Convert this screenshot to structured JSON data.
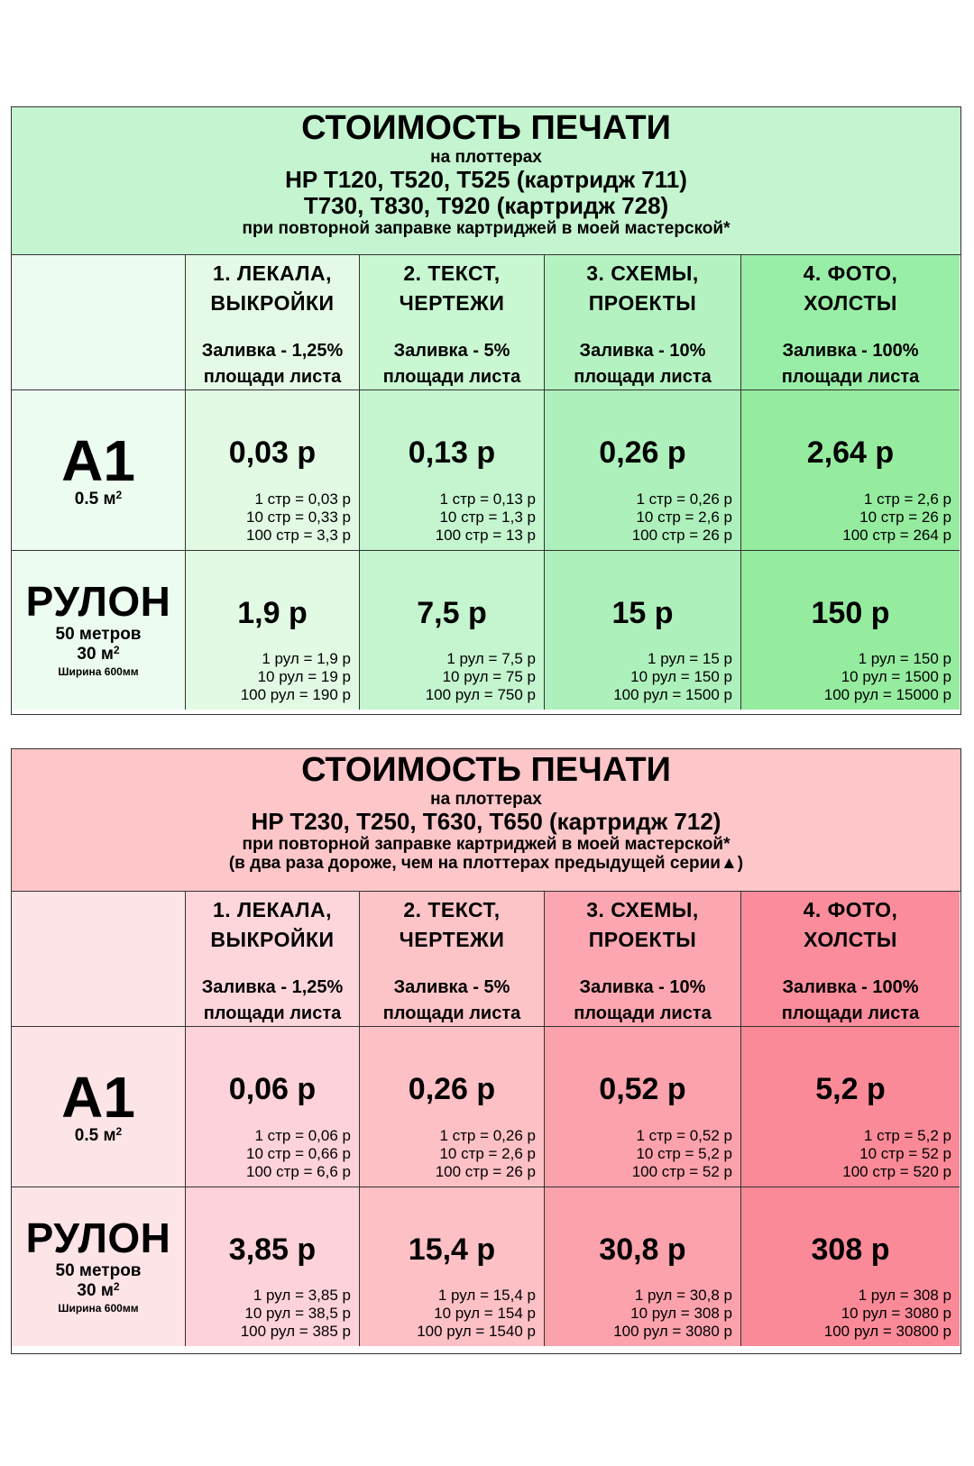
{
  "tables": [
    {
      "title": "СТОИМОСТЬ ПЕЧАТИ",
      "subtitle": "на плоттерах",
      "models": [
        "HP T120, T520, T525 (картридж 711)",
        "T730, T830, T920 (картридж 728)"
      ],
      "notes": [
        "при повторной заправке картриджей в моей мастерской*"
      ],
      "columns": [
        {
          "name_lines": [
            "1. ЛЕКАЛА,",
            "ВЫКРОЙКИ"
          ],
          "fill_lines": [
            "Заливка - 1,25%",
            "площади листа"
          ]
        },
        {
          "name_lines": [
            "2. ТЕКСТ,",
            "ЧЕРТЕЖИ"
          ],
          "fill_lines": [
            "Заливка - 5%",
            "площади листа"
          ]
        },
        {
          "name_lines": [
            "3. СХЕМЫ,",
            "ПРОЕКТЫ"
          ],
          "fill_lines": [
            "Заливка - 10%",
            "площади листа"
          ]
        },
        {
          "name_lines": [
            "4. ФОТО,",
            "ХОЛСТЫ"
          ],
          "fill_lines": [
            "Заливка - 100%",
            "площади листа"
          ]
        }
      ],
      "rows": [
        {
          "label": "A1",
          "area": "0.5 м",
          "area_sup": "2",
          "cells": [
            {
              "price": "0,03 р",
              "details": [
                "1 стр = 0,03 р",
                "10 стр = 0,33 р",
                "100 стр = 3,3 р"
              ]
            },
            {
              "price": "0,13 р",
              "details": [
                "1 стр = 0,13 р",
                "10 стр = 1,3 р",
                "100 стр = 13 р"
              ]
            },
            {
              "price": "0,26 р",
              "details": [
                "1 стр = 0,26 р",
                "10 стр = 2,6 р",
                "100 стр = 26 р"
              ]
            },
            {
              "price": "2,64 р",
              "details": [
                "1 стр = 2,6 р",
                "10 стр = 26 р",
                "100 стр = 264 р"
              ]
            }
          ]
        },
        {
          "label": "РУЛОН",
          "length": "50 метров",
          "area": "30 м",
          "area_sup": "2",
          "width": "Ширина 600мм",
          "cells": [
            {
              "price": "1,9 р",
              "details": [
                "1 рул = 1,9 р",
                "10 рул = 19 р",
                "100 рул = 190 р"
              ]
            },
            {
              "price": "7,5 р",
              "details": [
                "1 рул = 7,5 р",
                "10 рул = 75 р",
                "100 рул = 750 р"
              ]
            },
            {
              "price": "15 р",
              "details": [
                "1 рул = 15 р",
                "10 рул = 150 р",
                "100 рул = 1500 р"
              ]
            },
            {
              "price": "150 р",
              "details": [
                "1 рул = 150 р",
                "10 рул = 1500 р",
                "100 рул = 15000 р"
              ]
            }
          ]
        }
      ],
      "colors": {
        "header": "#c4f5d0",
        "label_col": [
          "#edfcf0",
          "#edfcf0"
        ],
        "cols": [
          [
            "#e4fae6",
            "#e2fae4",
            "#e2fae4"
          ],
          [
            "#c8f7d2",
            "#c4f5cf",
            "#c4f5cf"
          ],
          [
            "#b5f2c2",
            "#aef0bc",
            "#aef0bc"
          ],
          [
            "#99eea7",
            "#95ec9f",
            "#95ec9f"
          ]
        ]
      }
    },
    {
      "title": "СТОИМОСТЬ ПЕЧАТИ",
      "subtitle": "на плоттерах",
      "models": [
        "HP T230, T250, T630, T650 (картридж 712)"
      ],
      "notes": [
        "при повторной заправке картриджей в моей мастерской*",
        "(в два раза дороже, чем на плоттерах предыдущей серии▲)"
      ],
      "columns": [
        {
          "name_lines": [
            "1. ЛЕКАЛА,",
            "ВЫКРОЙКИ"
          ],
          "fill_lines": [
            "Заливка - 1,25%",
            "площади листа"
          ]
        },
        {
          "name_lines": [
            "2. ТЕКСТ,",
            "ЧЕРТЕЖИ"
          ],
          "fill_lines": [
            "Заливка - 5%",
            "площади листа"
          ]
        },
        {
          "name_lines": [
            "3. СХЕМЫ,",
            "ПРОЕКТЫ"
          ],
          "fill_lines": [
            "Заливка - 10%",
            "площади листа"
          ]
        },
        {
          "name_lines": [
            "4. ФОТО,",
            "ХОЛСТЫ"
          ],
          "fill_lines": [
            "Заливка - 100%",
            "площади листа"
          ]
        }
      ],
      "rows": [
        {
          "label": "A1",
          "area": "0.5 м",
          "area_sup": "2",
          "cells": [
            {
              "price": "0,06 р",
              "details": [
                "1 стр = 0,06 р",
                "10 стр = 0,66 р",
                "100 стр = 6,6 р"
              ]
            },
            {
              "price": "0,26 р",
              "details": [
                "1 стр = 0,26 р",
                "10 стр = 2,6 р",
                "100 стр = 26 р"
              ]
            },
            {
              "price": "0,52 р",
              "details": [
                "1 стр = 0,52 р",
                "10 стр = 5,2 р",
                "100 стр = 52 р"
              ]
            },
            {
              "price": "5,2 р",
              "details": [
                "1 стр = 5,2 р",
                "10 стр = 52 р",
                "100 стр = 520 р"
              ]
            }
          ]
        },
        {
          "label": "РУЛОН",
          "length": "50 метров",
          "area": "30 м",
          "area_sup": "2",
          "width": "Ширина 600мм",
          "cells": [
            {
              "price": "3,85 р",
              "details": [
                "1 рул = 3,85 р",
                "10 рул = 38,5 р",
                "100 рул = 385 р"
              ]
            },
            {
              "price": "15,4 р",
              "details": [
                "1 рул = 15,4 р",
                "10 рул = 154 р",
                "100 рул = 1540 р"
              ]
            },
            {
              "price": "30,8 р",
              "details": [
                "1 рул = 30,8 р",
                "10 рул = 308 р",
                "100 рул = 3080 р"
              ]
            },
            {
              "price": "308 р",
              "details": [
                "1 рул = 308 р",
                "10 рул = 3080 р",
                "100 рул = 30800 р"
              ]
            }
          ]
        }
      ],
      "colors": {
        "header": "#fdc6c9",
        "label_col": [
          "#fde4e7",
          "#fde4e7"
        ],
        "cols": [
          [
            "#fdd6dc",
            "#fdd2da",
            "#fdd2da"
          ],
          [
            "#fdc4c8",
            "#fdc0c5",
            "#fdc0c5"
          ],
          [
            "#fba6b0",
            "#fba2ad",
            "#fba2ad"
          ],
          [
            "#fb8c9b",
            "#fb8a98",
            "#fb8a98"
          ]
        ]
      }
    }
  ]
}
